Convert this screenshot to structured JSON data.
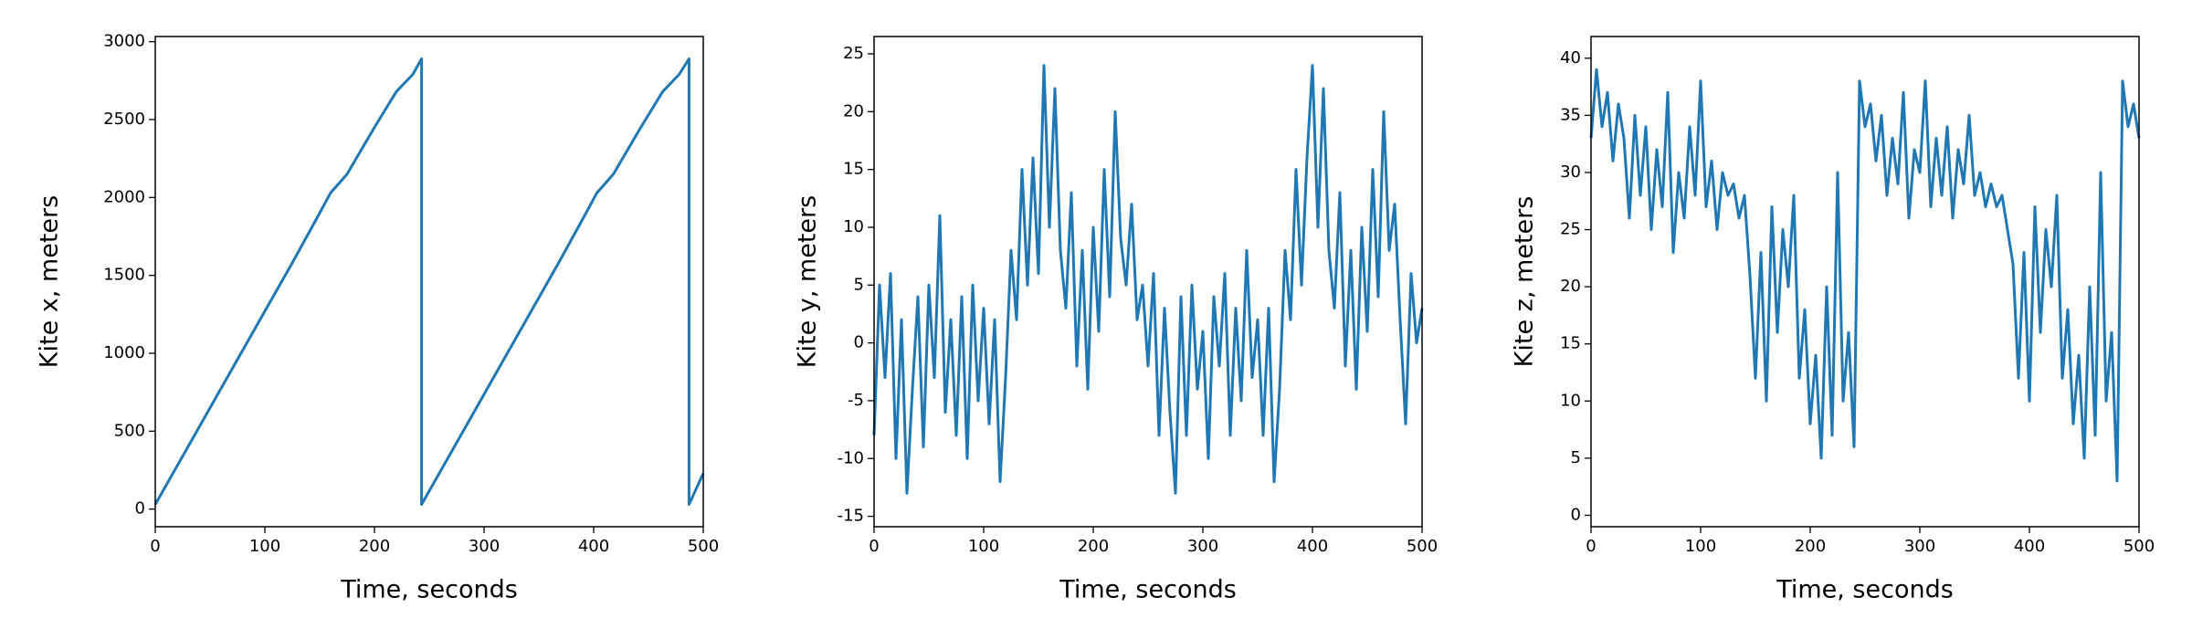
{
  "chart_data": [
    {
      "type": "line",
      "xlabel": "Time, seconds",
      "ylabel": "Kite x, meters",
      "color": "#1f77b4",
      "xlim": [
        0,
        500
      ],
      "xticks": [
        0,
        100,
        200,
        300,
        400,
        500
      ],
      "ylim": [
        -113,
        3033
      ],
      "yticks": [
        0,
        500,
        1000,
        1500,
        2000,
        2500,
        3000
      ],
      "x": [
        0,
        25,
        50,
        75,
        100,
        125,
        150,
        160,
        175,
        200,
        220,
        235,
        243,
        243,
        268,
        293,
        318,
        343,
        368,
        393,
        403,
        418,
        443,
        463,
        478,
        487,
        487,
        500
      ],
      "values": [
        30,
        340,
        650,
        960,
        1270,
        1580,
        1900,
        2030,
        2150,
        2450,
        2680,
        2790,
        2890,
        30,
        340,
        650,
        960,
        1270,
        1580,
        1900,
        2030,
        2150,
        2450,
        2680,
        2790,
        2890,
        30,
        230
      ]
    },
    {
      "type": "line",
      "xlabel": "Time, seconds",
      "ylabel": "Kite y, meters",
      "color": "#1f77b4",
      "xlim": [
        0,
        500
      ],
      "xticks": [
        0,
        100,
        200,
        300,
        400,
        500
      ],
      "ylim": [
        -15.9,
        26.5
      ],
      "yticks": [
        -15,
        -10,
        -5,
        0,
        5,
        10,
        15,
        20,
        25
      ],
      "x": [
        0,
        5,
        10,
        15,
        20,
        25,
        30,
        35,
        40,
        45,
        50,
        55,
        60,
        65,
        70,
        75,
        80,
        85,
        90,
        95,
        100,
        105,
        110,
        115,
        120,
        125,
        130,
        135,
        140,
        145,
        150,
        155,
        160,
        165,
        170,
        175,
        180,
        185,
        190,
        195,
        200,
        205,
        210,
        215,
        220,
        225,
        230,
        235,
        240,
        245,
        250,
        255,
        260,
        265,
        270,
        275,
        280,
        285,
        290,
        295,
        300,
        305,
        310,
        315,
        320,
        325,
        330,
        335,
        340,
        345,
        350,
        355,
        360,
        365,
        370,
        375,
        380,
        385,
        390,
        395,
        400,
        405,
        410,
        415,
        420,
        425,
        430,
        435,
        440,
        445,
        450,
        455,
        460,
        465,
        470,
        475,
        480,
        485,
        490,
        495,
        500
      ],
      "values": [
        -8,
        5,
        -3,
        6,
        -10,
        2,
        -13,
        -4,
        4,
        -9,
        5,
        -3,
        11,
        -6,
        2,
        -8,
        4,
        -10,
        5,
        -5,
        3,
        -7,
        2,
        -12,
        -3,
        8,
        2,
        15,
        5,
        16,
        6,
        24,
        10,
        22,
        8,
        3,
        13,
        -2,
        8,
        -4,
        10,
        1,
        15,
        4,
        20,
        9,
        5,
        12,
        2,
        5,
        -2,
        6,
        -8,
        3,
        -6,
        -13,
        4,
        -8,
        5,
        -4,
        1,
        -10,
        4,
        -2,
        6,
        -8,
        3,
        -5,
        8,
        -3,
        2,
        -8,
        3,
        -12,
        -4,
        8,
        2,
        15,
        5,
        16,
        24,
        10,
        22,
        8,
        3,
        13,
        -2,
        8,
        -4,
        10,
        1,
        15,
        4,
        20,
        8,
        12,
        2,
        -7,
        6,
        0,
        3
      ]
    },
    {
      "type": "line",
      "xlabel": "Time, seconds",
      "ylabel": "Kite z, meters",
      "color": "#1f77b4",
      "xlim": [
        0,
        500
      ],
      "xticks": [
        0,
        100,
        200,
        300,
        400,
        500
      ],
      "ylim": [
        -1,
        41.9
      ],
      "yticks": [
        0,
        5,
        10,
        15,
        20,
        25,
        30,
        35,
        40
      ],
      "x": [
        0,
        5,
        10,
        15,
        20,
        25,
        30,
        35,
        40,
        45,
        50,
        55,
        60,
        65,
        70,
        75,
        80,
        85,
        90,
        95,
        100,
        105,
        110,
        115,
        120,
        125,
        130,
        135,
        140,
        145,
        150,
        155,
        160,
        165,
        170,
        175,
        180,
        185,
        190,
        195,
        200,
        205,
        210,
        215,
        220,
        225,
        230,
        235,
        240,
        245,
        250,
        255,
        260,
        265,
        270,
        275,
        280,
        285,
        290,
        295,
        300,
        305,
        310,
        315,
        320,
        325,
        330,
        335,
        340,
        345,
        350,
        355,
        360,
        365,
        370,
        375,
        380,
        385,
        390,
        395,
        400,
        405,
        410,
        415,
        420,
        425,
        430,
        435,
        440,
        445,
        450,
        455,
        460,
        465,
        470,
        475,
        480,
        485,
        490,
        495,
        500
      ],
      "values": [
        33,
        39,
        34,
        37,
        31,
        36,
        33,
        26,
        35,
        28,
        34,
        25,
        32,
        27,
        37,
        23,
        30,
        26,
        34,
        28,
        38,
        27,
        31,
        25,
        30,
        28,
        29,
        26,
        28,
        21,
        12,
        23,
        10,
        27,
        16,
        25,
        20,
        28,
        12,
        18,
        8,
        14,
        5,
        20,
        7,
        30,
        10,
        16,
        6,
        38,
        34,
        36,
        31,
        35,
        28,
        33,
        29,
        37,
        26,
        32,
        30,
        38,
        27,
        33,
        28,
        34,
        26,
        32,
        29,
        35,
        28,
        30,
        27,
        29,
        27,
        28,
        25,
        22,
        12,
        23,
        10,
        27,
        16,
        25,
        20,
        28,
        12,
        18,
        8,
        14,
        5,
        20,
        7,
        30,
        10,
        16,
        3,
        38,
        34,
        36,
        33
      ]
    }
  ]
}
